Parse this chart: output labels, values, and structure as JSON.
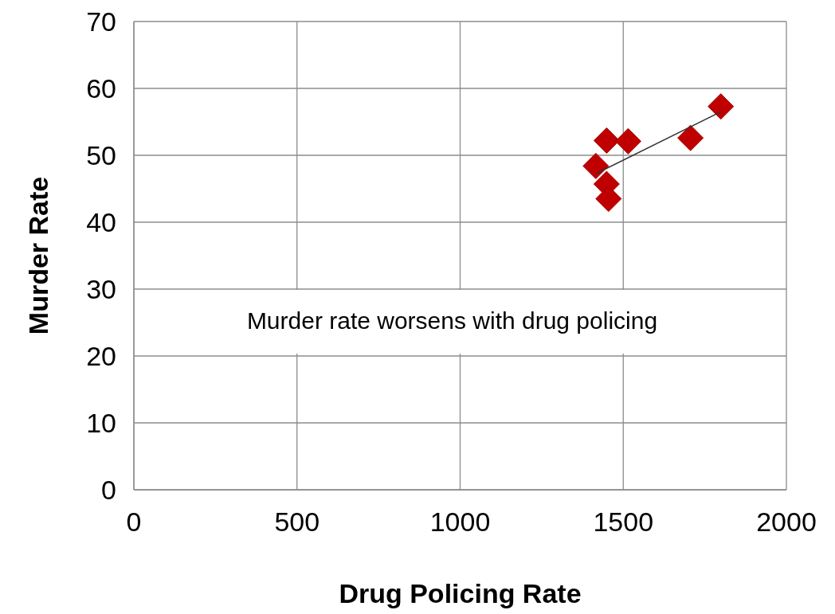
{
  "chart_data": {
    "type": "scatter",
    "xlabel": "Drug Policing Rate",
    "ylabel": "Murder Rate",
    "xlim": [
      0,
      2000
    ],
    "xticks": [
      0,
      500,
      1000,
      1500,
      2000
    ],
    "ylim": [
      0,
      70
    ],
    "yticks": [
      0,
      10,
      20,
      30,
      40,
      50,
      60,
      70
    ],
    "grid": true,
    "marker": "diamond",
    "series": [
      {
        "type": "scatter",
        "color": "#c00000",
        "x": [
          1449,
          1515,
          1706,
          1799,
          1416,
          1449,
          1455
        ],
        "values": [
          52.2,
          52.1,
          52.6,
          57.3,
          48.4,
          45.7,
          43.5
        ]
      },
      {
        "type": "line",
        "color": "#333333",
        "marker": "none",
        "x": [
          1418,
          1799
        ],
        "values": [
          47.3,
          56.5
        ]
      }
    ],
    "annotations": [
      "Murder rate worsens with drug policing"
    ]
  }
}
